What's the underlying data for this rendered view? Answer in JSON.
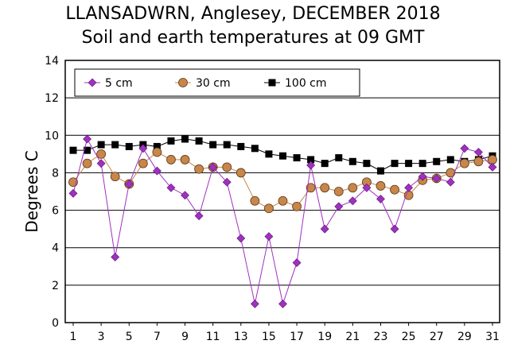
{
  "chart_data": {
    "type": "line",
    "title": "LLANSADWRN, Anglesey, DECEMBER 2018",
    "subtitle": "Soil and earth temperatures at 09 GMT",
    "ylabel": "Degrees C",
    "xlabel": "",
    "xlim": [
      1,
      31
    ],
    "ylim": [
      0,
      14
    ],
    "yticks": [
      "0",
      "2",
      "4",
      "6",
      "8",
      "10",
      "12",
      "14"
    ],
    "xticks": [
      "1",
      "3",
      "5",
      "7",
      "9",
      "11",
      "13",
      "15",
      "17",
      "19",
      "21",
      "23",
      "25",
      "27",
      "29",
      "31"
    ],
    "grid": "horizontal",
    "legend": "top-left",
    "x": [
      1,
      2,
      3,
      4,
      5,
      6,
      7,
      8,
      9,
      10,
      11,
      12,
      13,
      14,
      15,
      16,
      17,
      18,
      19,
      20,
      21,
      22,
      23,
      24,
      25,
      26,
      27,
      28,
      29,
      30,
      31
    ],
    "series": [
      {
        "name": "5 cm",
        "color": "#a030c0",
        "marker": "diamond",
        "values": [
          6.9,
          9.8,
          8.5,
          3.5,
          7.4,
          9.3,
          8.1,
          7.2,
          6.8,
          5.7,
          8.3,
          7.5,
          4.5,
          1.0,
          4.6,
          1.0,
          3.2,
          8.4,
          5.0,
          6.2,
          6.5,
          7.2,
          6.6,
          5.0,
          7.2,
          7.8,
          7.7,
          7.5,
          9.3,
          9.1,
          8.3
        ]
      },
      {
        "name": "30 cm",
        "color": "#c8864a",
        "marker": "circle",
        "values": [
          7.5,
          8.5,
          9.0,
          7.8,
          7.4,
          8.5,
          9.1,
          8.7,
          8.7,
          8.2,
          8.3,
          8.3,
          8.0,
          6.5,
          6.1,
          6.5,
          6.2,
          7.2,
          7.2,
          7.0,
          7.2,
          7.5,
          7.3,
          7.1,
          6.8,
          7.6,
          7.7,
          8.0,
          8.5,
          8.6,
          8.7
        ]
      },
      {
        "name": "100 cm",
        "color": "#000000",
        "marker": "square",
        "values": [
          9.2,
          9.2,
          9.5,
          9.5,
          9.4,
          9.5,
          9.4,
          9.7,
          9.8,
          9.7,
          9.5,
          9.5,
          9.4,
          9.3,
          9.0,
          8.9,
          8.8,
          8.7,
          8.5,
          8.8,
          8.6,
          8.5,
          8.1,
          8.5,
          8.5,
          8.5,
          8.6,
          8.7,
          8.6,
          8.7,
          8.9
        ]
      }
    ]
  }
}
